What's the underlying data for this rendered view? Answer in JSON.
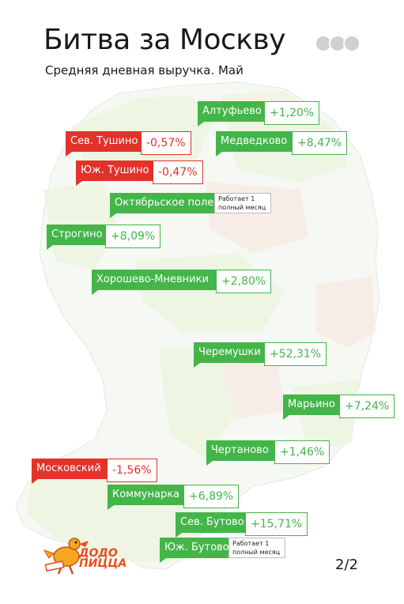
{
  "header": {
    "title": "Битва за Москву",
    "subtitle": "Средняя дневная выручка. Май"
  },
  "colors": {
    "positive": "#43b549",
    "negative": "#e2322a",
    "map_green": "#eef5e2",
    "map_pink": "#f8ece6",
    "brand": "#e94e1b"
  },
  "districts": [
    {
      "name": "Алтуфьево",
      "value": "+1,20%",
      "status": "positive"
    },
    {
      "name": "Сев. Тушино",
      "value": "-0,57%",
      "status": "negative"
    },
    {
      "name": "Медведково",
      "value": "+8,47%",
      "status": "positive"
    },
    {
      "name": "Юж. Тушино",
      "value": "-0,47%",
      "status": "negative"
    },
    {
      "name": "Октябрьское поле",
      "note": "Работает 1 полный месяц",
      "status": "positive"
    },
    {
      "name": "Строгино",
      "value": "+8,09%",
      "status": "positive"
    },
    {
      "name": "Хорошево-Мневники",
      "value": "+2,80%",
      "status": "positive"
    },
    {
      "name": "Черемушки",
      "value": "+52,31%",
      "status": "positive"
    },
    {
      "name": "Марьино",
      "value": "+7,24%",
      "status": "positive"
    },
    {
      "name": "Чертаново",
      "value": "+1,46%",
      "status": "positive"
    },
    {
      "name": "Московский",
      "value": "-1,56%",
      "status": "negative"
    },
    {
      "name": "Коммунарка",
      "value": "+6,89%",
      "status": "positive"
    },
    {
      "name": "Сев. Бутово",
      "value": "+15,71%",
      "status": "positive"
    },
    {
      "name": "Юж. Бутово",
      "note": "Работает 1 полный месяц",
      "status": "positive"
    }
  ],
  "logo": {
    "line1": "ДОДО",
    "line2": "ПИЦЦА"
  },
  "pagination": "2/2"
}
